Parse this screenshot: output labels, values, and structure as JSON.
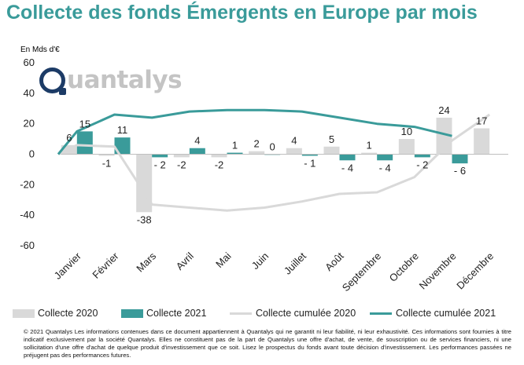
{
  "title": "Collecte des fonds Émergents en Europe par mois",
  "logo": {
    "text": "uantalys"
  },
  "colors": {
    "collecte_2020": "#d9d9d9",
    "collecte_2021": "#3a9b9a",
    "cumul_2020": "#d9d9d9",
    "cumul_2021": "#3a9b9a",
    "title": "#3a9b9a"
  },
  "chart_data": {
    "type": "bar",
    "ylabel": "En Mds d'€",
    "ylim": [
      -60,
      60
    ],
    "yticks": [
      "60",
      "40",
      "20",
      "0",
      "-20",
      "-40",
      "-60"
    ],
    "grid": false,
    "legend_position": "bottom",
    "categories": [
      "Janvier",
      "Février",
      "Mars",
      "Avril",
      "Mai",
      "Juin",
      "Juillet",
      "Août",
      "Septembre",
      "Octobre",
      "Novembre",
      "Décembre"
    ],
    "series": [
      {
        "name": "Collecte 2020",
        "kind": "bar",
        "values": [
          6,
          -1,
          -38,
          -2,
          -2,
          2,
          4,
          5,
          1,
          10,
          24,
          17
        ],
        "labels": [
          "6",
          "-1",
          "-38",
          "-2",
          "-2",
          "2",
          "4",
          "5",
          "1",
          "10",
          "24",
          "17"
        ]
      },
      {
        "name": "Collecte 2021",
        "kind": "bar",
        "values": [
          15,
          11,
          -2,
          4,
          1,
          0,
          -1,
          -4,
          -4,
          -2,
          -6,
          null
        ],
        "labels": [
          "15",
          "11",
          "- 2",
          "4",
          "1",
          "0",
          "- 1",
          "- 4",
          "- 4",
          "- 2",
          "- 6",
          ""
        ]
      },
      {
        "name": "Collecte cumulée 2020",
        "kind": "line",
        "x": [
          "start",
          "Janvier",
          "Février",
          "Mars",
          "Avril",
          "Mai",
          "Juin",
          "Juillet",
          "Août",
          "Septembre",
          "Octobre",
          "Novembre",
          "Décembre"
        ],
        "values": [
          0,
          6,
          5,
          -33,
          -35,
          -37,
          -35,
          -31,
          -26,
          -25,
          -15,
          9,
          26
        ]
      },
      {
        "name": "Collecte cumulée 2021",
        "kind": "line",
        "x": [
          "start",
          "Janvier",
          "Février",
          "Mars",
          "Avril",
          "Mai",
          "Juin",
          "Juillet",
          "Août",
          "Septembre",
          "Octobre",
          "Novembre"
        ],
        "values": [
          0,
          15,
          26,
          24,
          28,
          29,
          29,
          28,
          24,
          20,
          18,
          12
        ]
      }
    ]
  },
  "disclaimer": "© 2021 Quantalys Les informations contenues dans ce document appartiennent à Quantalys qui ne garantit ni leur fiabilité, ni leur exhaustivité. Ces informations sont fournies à titre indicatif exclusivement par la société Quantalys. Elles ne constituent pas de la part de Quantalys une offre d'achat, de vente, de souscription ou de services financiers, ni une sollicitation d'une offre d'achat de quelque produit d'investissement que ce soit. Lisez le prospectus du fonds avant toute décision d'investissement. Les performances passées ne préjugent pas des performances futures."
}
